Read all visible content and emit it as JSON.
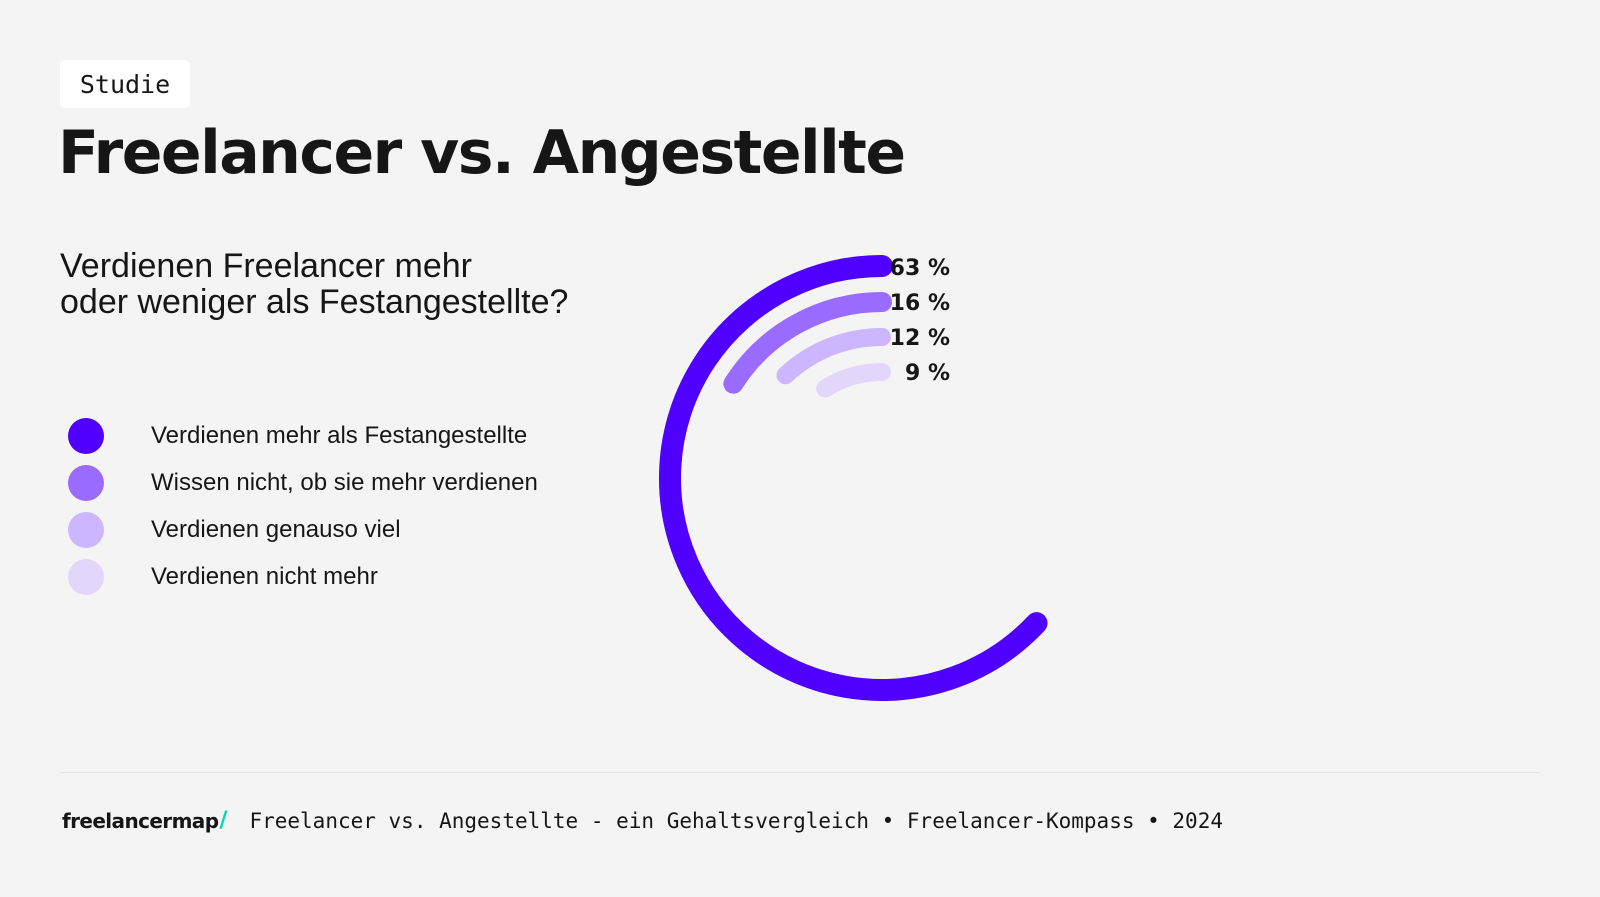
{
  "header": {
    "badge": "Studie",
    "title": "Freelancer vs. Angestellte"
  },
  "question": {
    "line1": "Verdienen Freelancer mehr",
    "line2": "oder weniger als Festangestellte?"
  },
  "chart_data": {
    "type": "radial-bar",
    "full_scale_percent": 100,
    "title": "",
    "series": [
      {
        "name": "Verdienen mehr als Festangestellte",
        "value": 63,
        "label": "63 %",
        "color": "#5000ff"
      },
      {
        "name": "Wissen nicht, ob sie mehr verdienen",
        "value": 16,
        "label": "16 %",
        "color": "#9a6bff"
      },
      {
        "name": "Verdienen genauso viel",
        "value": 12,
        "label": "12 %",
        "color": "#cbb6ff"
      },
      {
        "name": "Verdienen nicht mehr",
        "value": 9,
        "label": "9 %",
        "color": "#e2d7fb"
      }
    ],
    "legend_position": "left"
  },
  "footer": {
    "logo_text": "freelancermap",
    "logo_slash": "/",
    "logo_slash_color": "#00d9a8",
    "caption": "Freelancer vs. Angestellte - ein Gehaltsvergleich • Freelancer-Kompass • 2024"
  }
}
